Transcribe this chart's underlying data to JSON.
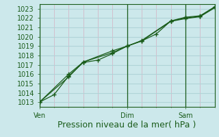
{
  "bg_color": "#cce8eb",
  "grid_major_color": "#b0d4d8",
  "grid_minor_color": "#d4b8c8",
  "line_color": "#1a5c1a",
  "xlabel": "Pression niveau de la mer( hPa )",
  "xlabel_fontsize": 9,
  "tick_label_fontsize": 7,
  "xlim": [
    0,
    72
  ],
  "ylim": [
    1012.5,
    1023.5
  ],
  "yticks": [
    1013,
    1014,
    1015,
    1016,
    1017,
    1018,
    1019,
    1020,
    1021,
    1022,
    1023
  ],
  "xtick_positions": [
    0,
    36,
    60
  ],
  "xtick_labels": [
    "Ven",
    "Dim",
    "Sam"
  ],
  "series1_x": [
    0,
    6,
    12,
    18,
    24,
    30,
    36,
    42,
    48,
    54,
    60,
    66,
    72
  ],
  "series1_y": [
    1013.0,
    1013.8,
    1015.8,
    1017.25,
    1017.5,
    1018.2,
    1019.0,
    1019.55,
    1020.3,
    1021.7,
    1022.0,
    1022.2,
    1023.2
  ],
  "series2_x": [
    0,
    12,
    18,
    30,
    36,
    42,
    54,
    60,
    66,
    72
  ],
  "series2_y": [
    1013.0,
    1016.0,
    1017.3,
    1018.5,
    1019.0,
    1019.6,
    1021.7,
    1022.1,
    1022.25,
    1023.2
  ],
  "series3_x": [
    0,
    12,
    18,
    30,
    36,
    42,
    54,
    60,
    66,
    72
  ],
  "series3_y": [
    1013.0,
    1015.7,
    1017.3,
    1018.3,
    1019.0,
    1019.55,
    1021.65,
    1021.95,
    1022.15,
    1023.1
  ]
}
